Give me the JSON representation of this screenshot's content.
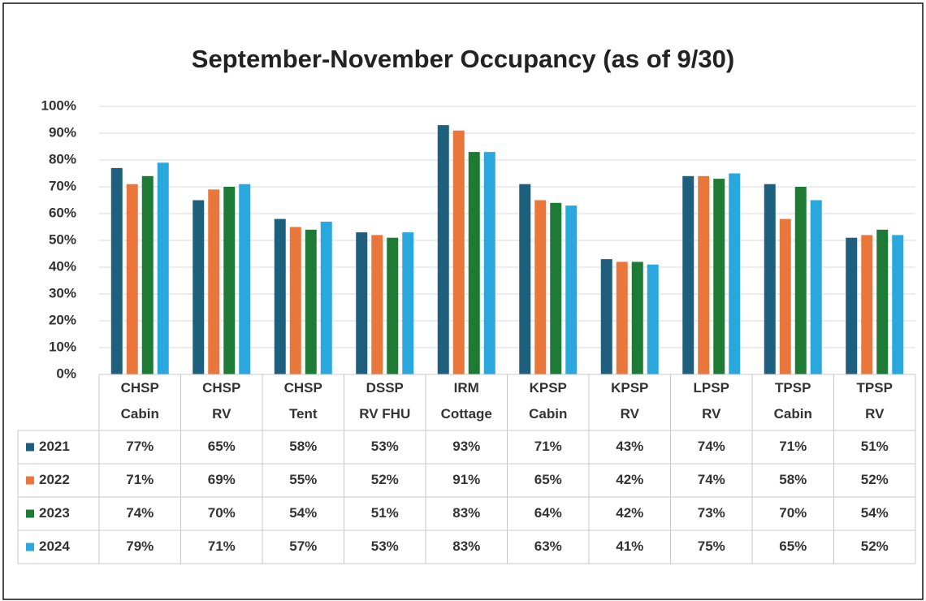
{
  "chart_data": {
    "type": "bar",
    "title": "September-November Occupancy (as of 9/30)",
    "categories": [
      "CHSP Cabin",
      "CHSP RV",
      "CHSP Tent",
      "DSSP RV FHU",
      "IRM Cottage",
      "KPSP Cabin",
      "KPSP RV",
      "LPSP RV",
      "TPSP Cabin",
      "TPSP RV"
    ],
    "series": [
      {
        "name": "2021",
        "color": "#1f5f7e",
        "values": [
          77,
          65,
          58,
          53,
          93,
          71,
          43,
          74,
          71,
          51
        ],
        "value_labels": [
          "77%",
          "65%",
          "58%",
          "53%",
          "93%",
          "71%",
          "43%",
          "74%",
          "71%",
          "51%"
        ]
      },
      {
        "name": "2022",
        "color": "#e9773b",
        "values": [
          71,
          69,
          55,
          52,
          91,
          65,
          42,
          74,
          58,
          52
        ],
        "value_labels": [
          "71%",
          "69%",
          "55%",
          "52%",
          "91%",
          "65%",
          "42%",
          "74%",
          "58%",
          "52%"
        ]
      },
      {
        "name": "2023",
        "color": "#1e7b36",
        "values": [
          74,
          70,
          54,
          51,
          83,
          64,
          42,
          73,
          70,
          54
        ],
        "value_labels": [
          "74%",
          "70%",
          "54%",
          "51%",
          "83%",
          "64%",
          "42%",
          "73%",
          "70%",
          "54%"
        ]
      },
      {
        "name": "2024",
        "color": "#2aa8de",
        "values": [
          79,
          71,
          57,
          53,
          83,
          63,
          41,
          75,
          65,
          52
        ],
        "value_labels": [
          "79%",
          "71%",
          "57%",
          "53%",
          "83%",
          "63%",
          "41%",
          "75%",
          "65%",
          "52%"
        ]
      }
    ],
    "ylim": [
      0,
      100
    ],
    "yticks": [
      {
        "value": 0,
        "label": "0%"
      },
      {
        "value": 10,
        "label": "10%"
      },
      {
        "value": 20,
        "label": "20%"
      },
      {
        "value": 30,
        "label": "30%"
      },
      {
        "value": 40,
        "label": "40%"
      },
      {
        "value": 50,
        "label": "50%"
      },
      {
        "value": 60,
        "label": "60%"
      },
      {
        "value": 70,
        "label": "70%"
      },
      {
        "value": 80,
        "label": "80%"
      },
      {
        "value": 90,
        "label": "90%"
      },
      {
        "value": 100,
        "label": "100%"
      }
    ],
    "grid": true
  }
}
